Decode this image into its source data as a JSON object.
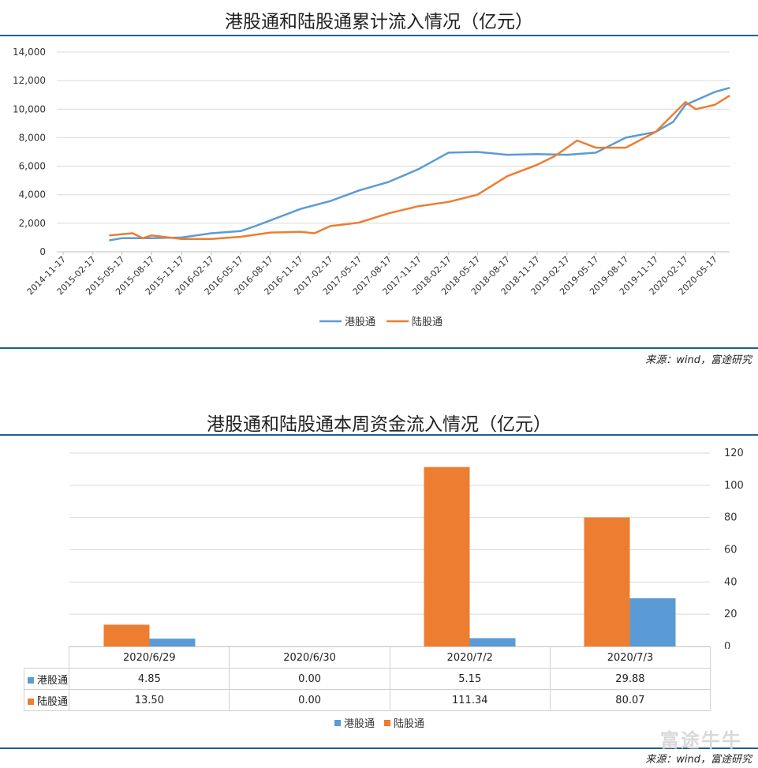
{
  "top": {
    "title": "港股通和陆股通累计流入情况（亿元）",
    "source": "来源：wind，富途研究"
  },
  "bottom": {
    "title": "港股通和陆股通本周资金流入情况（亿元）",
    "source": "来源：wind，富途研究"
  },
  "watermark": "富途牛牛",
  "colors": {
    "hk": "#5b9bd5",
    "lu": "#ed7d31",
    "rule": "#1f5f8b"
  },
  "chart_data": [
    {
      "type": "line",
      "title": "港股通和陆股通累计流入情况（亿元）",
      "x_ticks": [
        "2014-11-17",
        "2015-02-17",
        "2015-05-17",
        "2015-08-17",
        "2015-11-17",
        "2016-02-17",
        "2016-05-17",
        "2016-08-17",
        "2016-11-17",
        "2017-02-17",
        "2017-05-17",
        "2017-08-17",
        "2017-11-17",
        "2018-02-17",
        "2018-05-17",
        "2018-08-17",
        "2018-11-17",
        "2019-02-17",
        "2019-05-17",
        "2019-08-17",
        "2019-11-17",
        "2020-02-17",
        "2020-05-17"
      ],
      "ylim": [
        0,
        14000
      ],
      "y_ticks": [
        "0",
        "2,000",
        "4,000",
        "6,000",
        "8,000",
        "10,000",
        "12,000",
        "14,000"
      ],
      "grid": true,
      "legend": "bottom",
      "series": [
        {
          "name": "港股通",
          "x": [
            "2015-04-08",
            "2015-05-17",
            "2015-08-17",
            "2015-11-17",
            "2016-02-17",
            "2016-05-17",
            "2016-07-01",
            "2016-08-17",
            "2016-11-17",
            "2017-02-17",
            "2017-05-17",
            "2017-08-17",
            "2017-11-17",
            "2018-01-20",
            "2018-02-17",
            "2018-05-17",
            "2018-08-17",
            "2018-11-17",
            "2019-02-17",
            "2019-05-17",
            "2019-08-17",
            "2019-11-17",
            "2020-01-10",
            "2020-02-17",
            "2020-05-17",
            "2020-07-03"
          ],
          "y": [
            800,
            950,
            950,
            1000,
            1300,
            1450,
            1800,
            2200,
            3000,
            3550,
            4300,
            4900,
            5800,
            6600,
            6950,
            7000,
            6800,
            6850,
            6800,
            6950,
            8000,
            8400,
            9100,
            10300,
            11200,
            11500
          ]
        },
        {
          "name": "陆股通",
          "x": [
            "2015-04-08",
            "2015-06-20",
            "2015-07-20",
            "2015-08-17",
            "2015-11-17",
            "2016-02-17",
            "2016-05-17",
            "2016-08-17",
            "2016-11-17",
            "2016-12-31",
            "2017-02-17",
            "2017-05-17",
            "2017-08-17",
            "2017-11-17",
            "2018-02-17",
            "2018-05-17",
            "2018-08-17",
            "2018-11-17",
            "2019-01-10",
            "2019-02-17",
            "2019-03-20",
            "2019-05-17",
            "2019-08-17",
            "2019-11-17",
            "2020-02-17",
            "2020-03-20",
            "2020-05-17",
            "2020-07-03"
          ],
          "y": [
            1150,
            1300,
            950,
            1150,
            900,
            900,
            1050,
            1350,
            1400,
            1300,
            1800,
            2050,
            2700,
            3200,
            3500,
            4000,
            5300,
            6100,
            6700,
            7300,
            7800,
            7300,
            7300,
            8400,
            10500,
            10000,
            10300,
            10950
          ]
        }
      ]
    },
    {
      "type": "bar",
      "title": "港股通和陆股通本周资金流入情况（亿元）",
      "categories": [
        "2020/6/29",
        "2020/6/30",
        "2020/7/2",
        "2020/7/3"
      ],
      "ylim": [
        0,
        120
      ],
      "y_ticks": [
        "0",
        "20",
        "40",
        "60",
        "80",
        "100",
        "120"
      ],
      "grid": true,
      "legend": "bottom",
      "series": [
        {
          "name": "港股通",
          "values": [
            4.85,
            0.0,
            5.15,
            29.88
          ],
          "labels": [
            "4.85",
            "0.00",
            "5.15",
            "29.88"
          ]
        },
        {
          "name": "陆股通",
          "values": [
            13.5,
            0.0,
            111.34,
            80.07
          ],
          "labels": [
            "13.50",
            "0.00",
            "111.34",
            "80.07"
          ]
        }
      ]
    }
  ]
}
